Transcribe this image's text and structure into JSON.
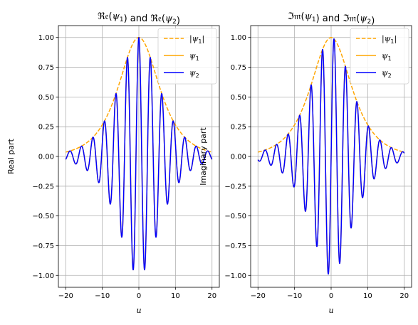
{
  "chart_data": [
    {
      "type": "line",
      "title": {
        "prefix": "ℜ𝔢(",
        "var1": "ψ",
        "sub1": "1",
        "mid": ") and ℜ𝔢(",
        "var2": "ψ",
        "sub2": "2",
        "suffix": ")"
      },
      "xlabel": "u",
      "ylabel": "Real part",
      "xlim": [
        -22,
        22
      ],
      "ylim": [
        -1.1,
        1.1
      ],
      "xticks": [
        -20,
        -10,
        0,
        10,
        20
      ],
      "xtick_labels": [
        "−20",
        "−10",
        "0",
        "10",
        "20"
      ],
      "yticks": [
        1.0,
        0.75,
        0.5,
        0.25,
        0.0,
        -0.25,
        -0.5,
        -0.75,
        -1.0
      ],
      "ytick_labels": [
        "1.00",
        "0.75",
        "0.50",
        "0.25",
        "0.00",
        "−0.25",
        "−0.50",
        "−0.75",
        "−1.00"
      ],
      "grid": true,
      "legend_position": "top-right",
      "envelope": {
        "kind": "sech",
        "width": 5.0,
        "x_range": [
          -20,
          20
        ]
      },
      "carrier": {
        "kind": "cos",
        "frequency": 2.0
      },
      "series": [
        {
          "name": "|ψ₁|",
          "label_var": "|ψ",
          "label_sub": "1",
          "label_suffix": "|",
          "role": "envelope",
          "color": "#ffa500",
          "dash": "dashed"
        },
        {
          "name": "ψ₁",
          "label_var": "ψ",
          "label_sub": "1",
          "label_suffix": "",
          "role": "signal",
          "color": "#ffa500",
          "dash": "solid"
        },
        {
          "name": "ψ₂",
          "label_var": "ψ",
          "label_sub": "2",
          "label_suffix": "",
          "role": "signal",
          "color": "#0000ff",
          "dash": "solid"
        }
      ]
    },
    {
      "type": "line",
      "title": {
        "prefix": "ℑ𝔪(",
        "var1": "ψ",
        "sub1": "1",
        "mid": ") and ℑ𝔪(",
        "var2": "ψ",
        "sub2": "2",
        "suffix": ")"
      },
      "xlabel": "u",
      "ylabel": "Imaginary part",
      "xlim": [
        -22,
        22
      ],
      "ylim": [
        -1.1,
        1.1
      ],
      "xticks": [
        -20,
        -10,
        0,
        10,
        20
      ],
      "xtick_labels": [
        "−20",
        "−10",
        "0",
        "10",
        "20"
      ],
      "yticks": [
        1.0,
        0.75,
        0.5,
        0.25,
        0.0,
        -0.25,
        -0.5,
        -0.75,
        -1.0
      ],
      "ytick_labels": [
        "1.00",
        "0.75",
        "0.50",
        "0.25",
        "0.00",
        "−0.25",
        "−0.50",
        "−0.75",
        "−1.00"
      ],
      "grid": true,
      "legend_position": "top-right",
      "envelope": {
        "kind": "sech",
        "width": 5.0,
        "x_range": [
          -20,
          20
        ]
      },
      "carrier": {
        "kind": "sin",
        "frequency": 2.0
      },
      "series": [
        {
          "name": "|ψ₁|",
          "label_var": "|ψ",
          "label_sub": "1",
          "label_suffix": "|",
          "role": "envelope",
          "color": "#ffa500",
          "dash": "dashed"
        },
        {
          "name": "ψ₁",
          "label_var": "ψ",
          "label_sub": "1",
          "label_suffix": "",
          "role": "signal",
          "color": "#ffa500",
          "dash": "solid"
        },
        {
          "name": "ψ₂",
          "label_var": "ψ",
          "label_sub": "2",
          "label_suffix": "",
          "role": "signal",
          "color": "#0000ff",
          "dash": "solid"
        }
      ]
    }
  ]
}
